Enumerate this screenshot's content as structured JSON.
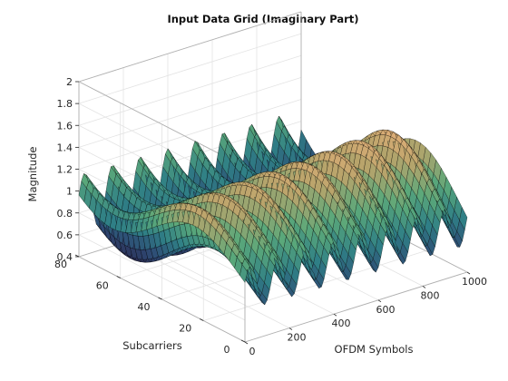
{
  "chart_data": {
    "type": "surface",
    "title": "Input Data Grid (Imaginary Part)",
    "xlabel": "OFDM Symbols",
    "ylabel": "Subcarriers",
    "zlabel": "Magnitude",
    "xlim": [
      0,
      1000
    ],
    "ylim": [
      0,
      80
    ],
    "zlim": [
      0.4,
      2
    ],
    "xticks": [
      0,
      200,
      400,
      600,
      800,
      1000
    ],
    "yticks": [
      0,
      20,
      40,
      60,
      80
    ],
    "zticks": [
      0.4,
      0.6,
      0.8,
      1,
      1.2,
      1.4,
      1.6,
      1.8,
      2
    ],
    "grid": true,
    "colormap": [
      "#2b2147",
      "#2e4a74",
      "#2f7f86",
      "#5aa87a",
      "#b9a46b",
      "#e8b07a"
    ],
    "edge_color": "#000000",
    "surface_model": {
      "description_free": true,
      "subcarrier_baseline_range": [
        0.5,
        1.35
      ],
      "symbol_oscillation_peaks": 8,
      "z_range": [
        0.42,
        1.55
      ]
    }
  }
}
